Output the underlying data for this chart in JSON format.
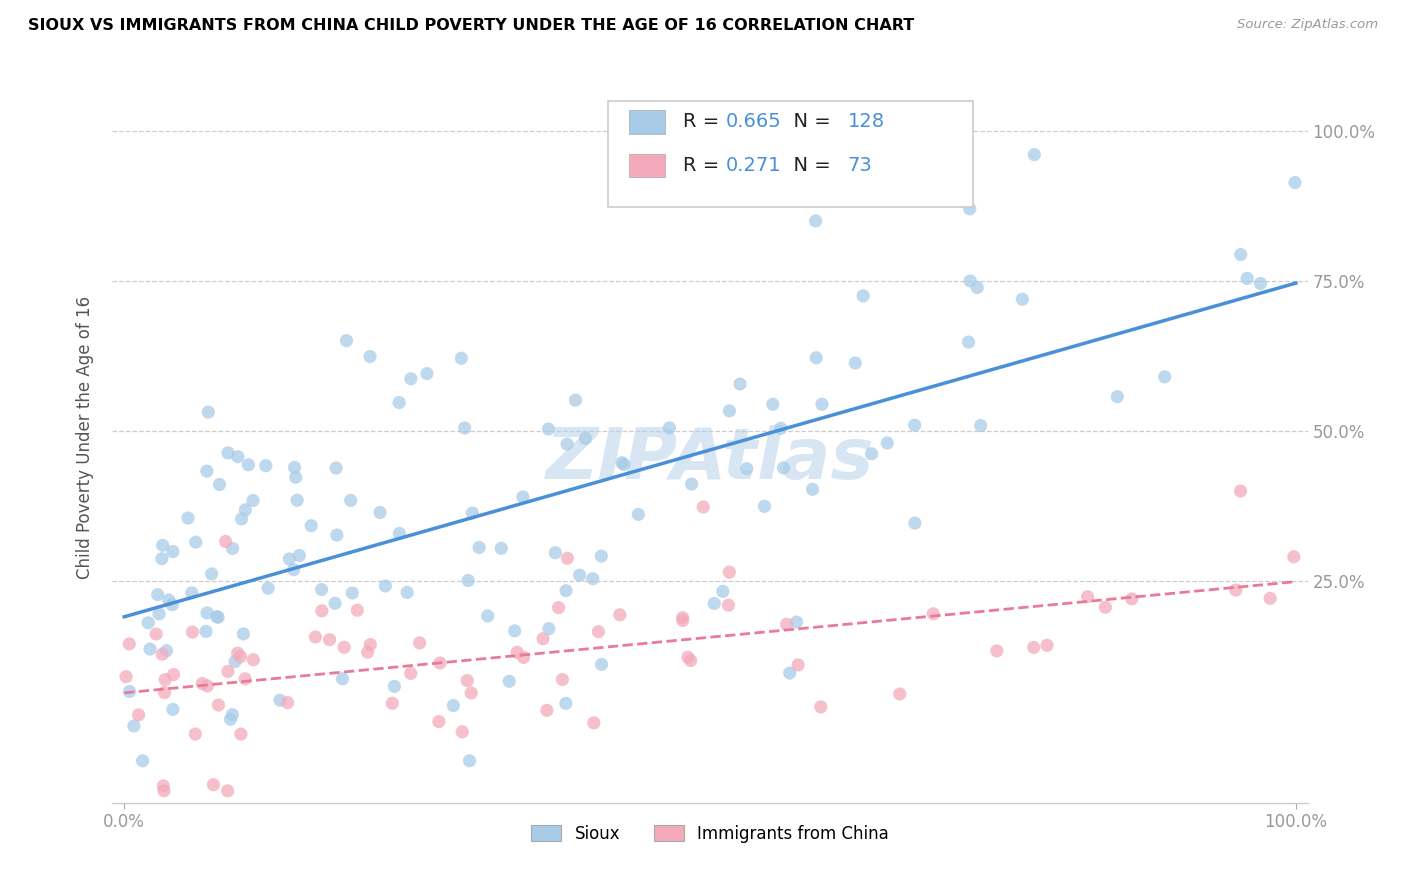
{
  "title": "SIOUX VS IMMIGRANTS FROM CHINA CHILD POVERTY UNDER THE AGE OF 16 CORRELATION CHART",
  "source": "Source: ZipAtlas.com",
  "ylabel": "Child Poverty Under the Age of 16",
  "x_tick_labels": [
    "0.0%",
    "100.0%"
  ],
  "y_tick_labels": [
    "25.0%",
    "50.0%",
    "75.0%",
    "100.0%"
  ],
  "y_tick_positions": [
    0.25,
    0.5,
    0.75,
    1.0
  ],
  "sioux_color": "#A8CBE8",
  "sioux_line_color": "#4A90D9",
  "china_color": "#F4AABB",
  "china_line_color": "#E87A9A",
  "sioux_R": 0.665,
  "sioux_N": 128,
  "china_R": 0.271,
  "china_N": 73,
  "watermark": "ZIPAtlas",
  "legend_R_color": "#4A90D9",
  "legend_N_color": "#4A90D9"
}
